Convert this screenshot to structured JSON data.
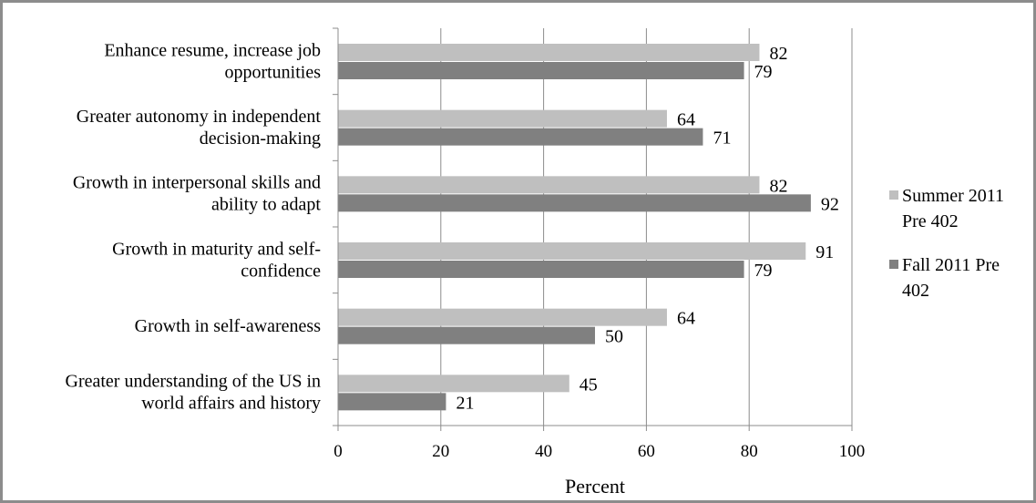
{
  "chart_data": {
    "type": "bar",
    "orientation": "horizontal",
    "categories": [
      [
        "Enhance resume, increase job",
        "opportunities"
      ],
      [
        "Greater autonomy in independent",
        "decision-making"
      ],
      [
        "Growth in interpersonal skills and",
        "ability to adapt"
      ],
      [
        "Growth in maturity and self-",
        "confidence"
      ],
      [
        "Growth in self-awareness"
      ],
      [
        "Greater understanding of the US in",
        "world affairs and history"
      ]
    ],
    "series": [
      {
        "name": [
          "Summer 2011",
          "Pre 402"
        ],
        "color": "#bfbfbf",
        "values": [
          82,
          64,
          82,
          91,
          64,
          45
        ]
      },
      {
        "name": [
          "Fall 2011 Pre",
          "402"
        ],
        "color": "#808080",
        "values": [
          79,
          71,
          92,
          79,
          50,
          21
        ]
      }
    ],
    "xlabel": "Percent",
    "xlim": [
      0,
      100
    ],
    "xticks": [
      "0",
      "20",
      "40",
      "60",
      "80",
      "100"
    ],
    "grid": true,
    "legend": "right"
  }
}
